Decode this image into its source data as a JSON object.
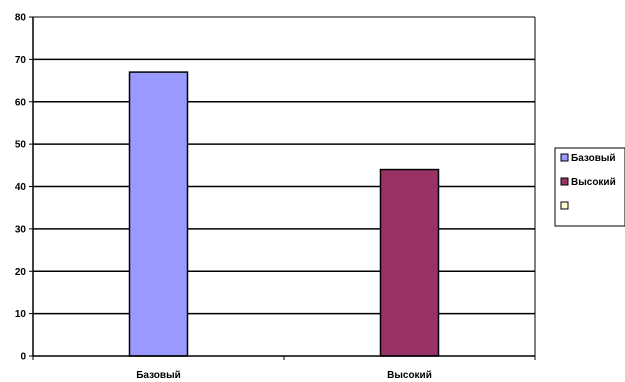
{
  "chart_data": {
    "type": "bar",
    "categories": [
      "Базовый",
      "Высокий"
    ],
    "series": [
      {
        "name": "Базовый",
        "color": "#9999ff",
        "values": [
          67,
          null
        ]
      },
      {
        "name": "Высокий",
        "color": "#993366",
        "values": [
          null,
          44
        ]
      },
      {
        "name": "",
        "color": "#ffffcc",
        "values": [
          null,
          null
        ]
      }
    ],
    "ylim": [
      0,
      80
    ],
    "yticks": [
      0,
      10,
      20,
      30,
      40,
      50,
      60,
      70,
      80
    ],
    "grid": true,
    "legend": "right"
  }
}
